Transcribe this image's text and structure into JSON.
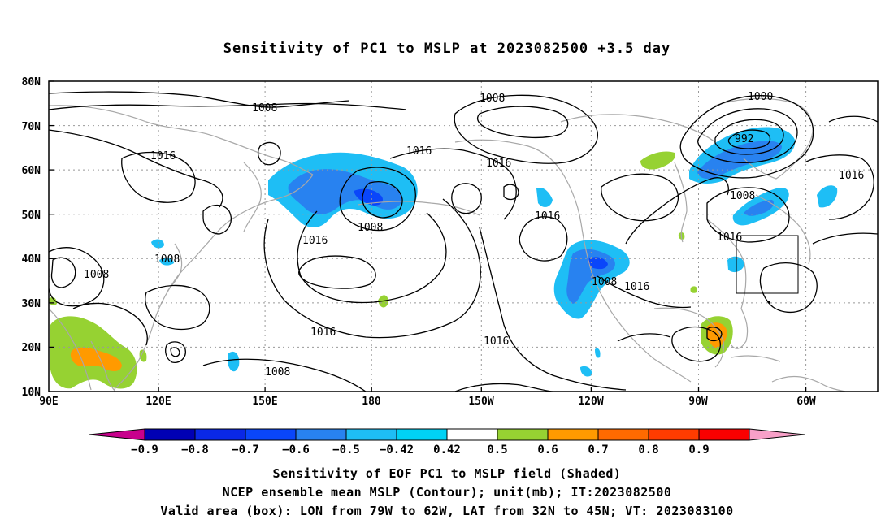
{
  "title": "Sensitivity of PC1 to MSLP at 2023082500 +3.5 day",
  "map": {
    "lon_labels": [
      "90E",
      "120E",
      "150E",
      "180",
      "150W",
      "120W",
      "90W",
      "60W"
    ],
    "lat_labels": [
      "80N",
      "70N",
      "60N",
      "50N",
      "40N",
      "30N",
      "20N",
      "10N"
    ],
    "contour_labels": [
      "1008",
      "1008",
      "1016",
      "1016",
      "1016",
      "1008",
      "1016",
      "1008",
      "1016",
      "1008",
      "1016",
      "1016",
      "1008",
      "1016",
      "1016",
      "1000",
      "992",
      "1008",
      "1016",
      "1008"
    ],
    "box_label_hidden": "",
    "colors": {
      "coast": "#a8a8a8",
      "contour": "#000000",
      "grid": "#999999"
    }
  },
  "colorbar": {
    "ticks": [
      "−0.9",
      "−0.8",
      "−0.7",
      "−0.6",
      "−0.5",
      "−0.42",
      "0.42",
      "0.5",
      "0.6",
      "0.7",
      "0.8",
      "0.9"
    ],
    "colors": [
      "#c8008c",
      "#0000b4",
      "#0a28e6",
      "#0a46fa",
      "#2882f0",
      "#1ebef5",
      "#00d2f5",
      "#ffffff",
      "#96d232",
      "#ff9a00",
      "#ff6a00",
      "#ff3c00",
      "#fa0000",
      "#f8a0c8"
    ]
  },
  "captions": [
    "Sensitivity of EOF PC1 to MSLP field (Shaded)",
    "NCEP ensemble mean MSLP (Contour); unit(mb); IT:2023082500",
    "Valid area (box): LON from 79W to 62W, LAT from 32N to 45N; VT: 2023083100"
  ]
}
